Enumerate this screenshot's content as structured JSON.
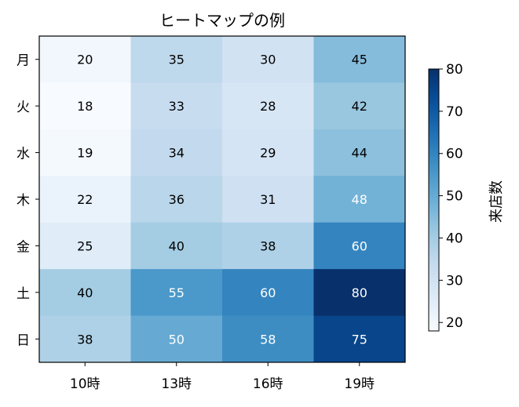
{
  "chart_data": {
    "type": "heatmap",
    "title": "ヒートマップの例",
    "x_categories": [
      "10時",
      "13時",
      "16時",
      "19時"
    ],
    "y_categories": [
      "月",
      "火",
      "水",
      "木",
      "金",
      "土",
      "日"
    ],
    "values": [
      [
        20,
        35,
        30,
        45
      ],
      [
        18,
        33,
        28,
        42
      ],
      [
        19,
        34,
        29,
        44
      ],
      [
        22,
        36,
        31,
        48
      ],
      [
        25,
        40,
        38,
        60
      ],
      [
        40,
        55,
        60,
        80
      ],
      [
        38,
        50,
        58,
        75
      ]
    ],
    "colormap": "Blues",
    "vmin": 18,
    "vmax": 80,
    "colorbar": {
      "label": "来店数",
      "ticks": [
        20,
        30,
        40,
        50,
        60,
        70,
        80
      ]
    },
    "label_colors": {
      "dark": "#000000",
      "light": "#ffffff"
    }
  }
}
